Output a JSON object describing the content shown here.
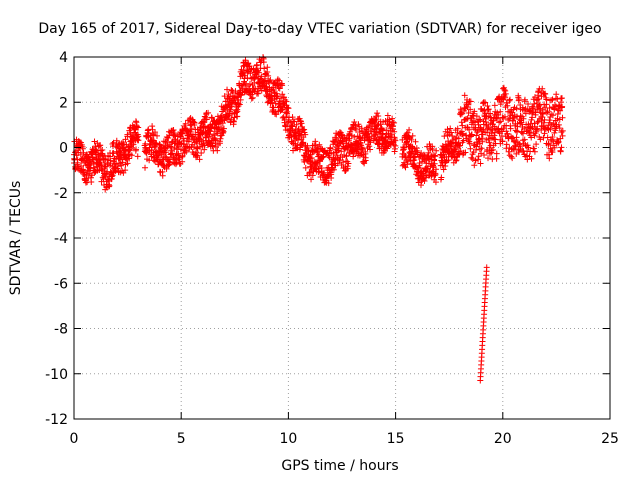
{
  "chart_data": {
    "type": "scatter",
    "title": "Day 165 of 2017, Sidereal Day-to-day VTEC variation (SDTVAR) for receiver igeo",
    "xlabel": "GPS time / hours",
    "ylabel": "SDTVAR / TECUs",
    "xlim": [
      0,
      25
    ],
    "ylim": [
      -12,
      4
    ],
    "xticks": [
      0,
      5,
      10,
      15,
      20,
      25
    ],
    "yticks": [
      -12,
      -10,
      -8,
      -6,
      -4,
      -2,
      0,
      2,
      4
    ],
    "xtick_labels": [
      "0",
      "5",
      "10",
      "15",
      "20",
      "25"
    ],
    "ytick_labels": [
      "-12",
      "-10",
      "-8",
      "-6",
      "-4",
      "-2",
      "0",
      "2",
      "4"
    ],
    "grid": true,
    "marker": "+",
    "color": "#ff0000",
    "trend": [
      [
        0.0,
        -0.5
      ],
      [
        0.5,
        -0.8
      ],
      [
        1.0,
        -0.6
      ],
      [
        1.5,
        -0.9
      ],
      [
        2.0,
        -0.6
      ],
      [
        2.5,
        0.1
      ],
      [
        3.0,
        0.2
      ],
      [
        3.5,
        0.0
      ],
      [
        4.0,
        -0.2
      ],
      [
        4.5,
        -0.3
      ],
      [
        5.0,
        0.3
      ],
      [
        5.5,
        0.4
      ],
      [
        6.0,
        0.5
      ],
      [
        6.5,
        0.6
      ],
      [
        7.0,
        1.3
      ],
      [
        7.5,
        2.1
      ],
      [
        8.0,
        2.9
      ],
      [
        8.5,
        3.2
      ],
      [
        9.0,
        2.8
      ],
      [
        9.5,
        2.2
      ],
      [
        10.0,
        1.2
      ],
      [
        10.5,
        0.3
      ],
      [
        11.0,
        -0.4
      ],
      [
        11.5,
        -0.8
      ],
      [
        12.0,
        -0.5
      ],
      [
        12.5,
        -0.1
      ],
      [
        13.0,
        0.1
      ],
      [
        13.5,
        0.3
      ],
      [
        14.0,
        0.6
      ],
      [
        14.5,
        0.8
      ],
      [
        15.0,
        0.3
      ],
      [
        15.5,
        -0.1
      ],
      [
        16.0,
        -0.5
      ],
      [
        16.5,
        -0.9
      ],
      [
        17.0,
        -0.6
      ],
      [
        17.5,
        -0.1
      ],
      [
        18.0,
        0.6
      ],
      [
        18.5,
        0.9
      ],
      [
        19.0,
        0.4
      ],
      [
        19.5,
        0.8
      ],
      [
        20.0,
        1.1
      ],
      [
        20.5,
        1.0
      ],
      [
        21.0,
        0.8
      ],
      [
        21.5,
        1.0
      ],
      [
        22.0,
        1.2
      ],
      [
        22.5,
        0.9
      ],
      [
        22.8,
        0.8
      ]
    ],
    "gaps": [
      [
        3.0,
        3.3
      ],
      [
        15.0,
        15.3
      ],
      [
        16.9,
        17.1
      ]
    ],
    "outlier_arc": {
      "x": [
        18.95,
        19.1,
        19.25
      ],
      "y": [
        -10.3,
        -7.8,
        -5.3
      ],
      "count": 30
    }
  }
}
